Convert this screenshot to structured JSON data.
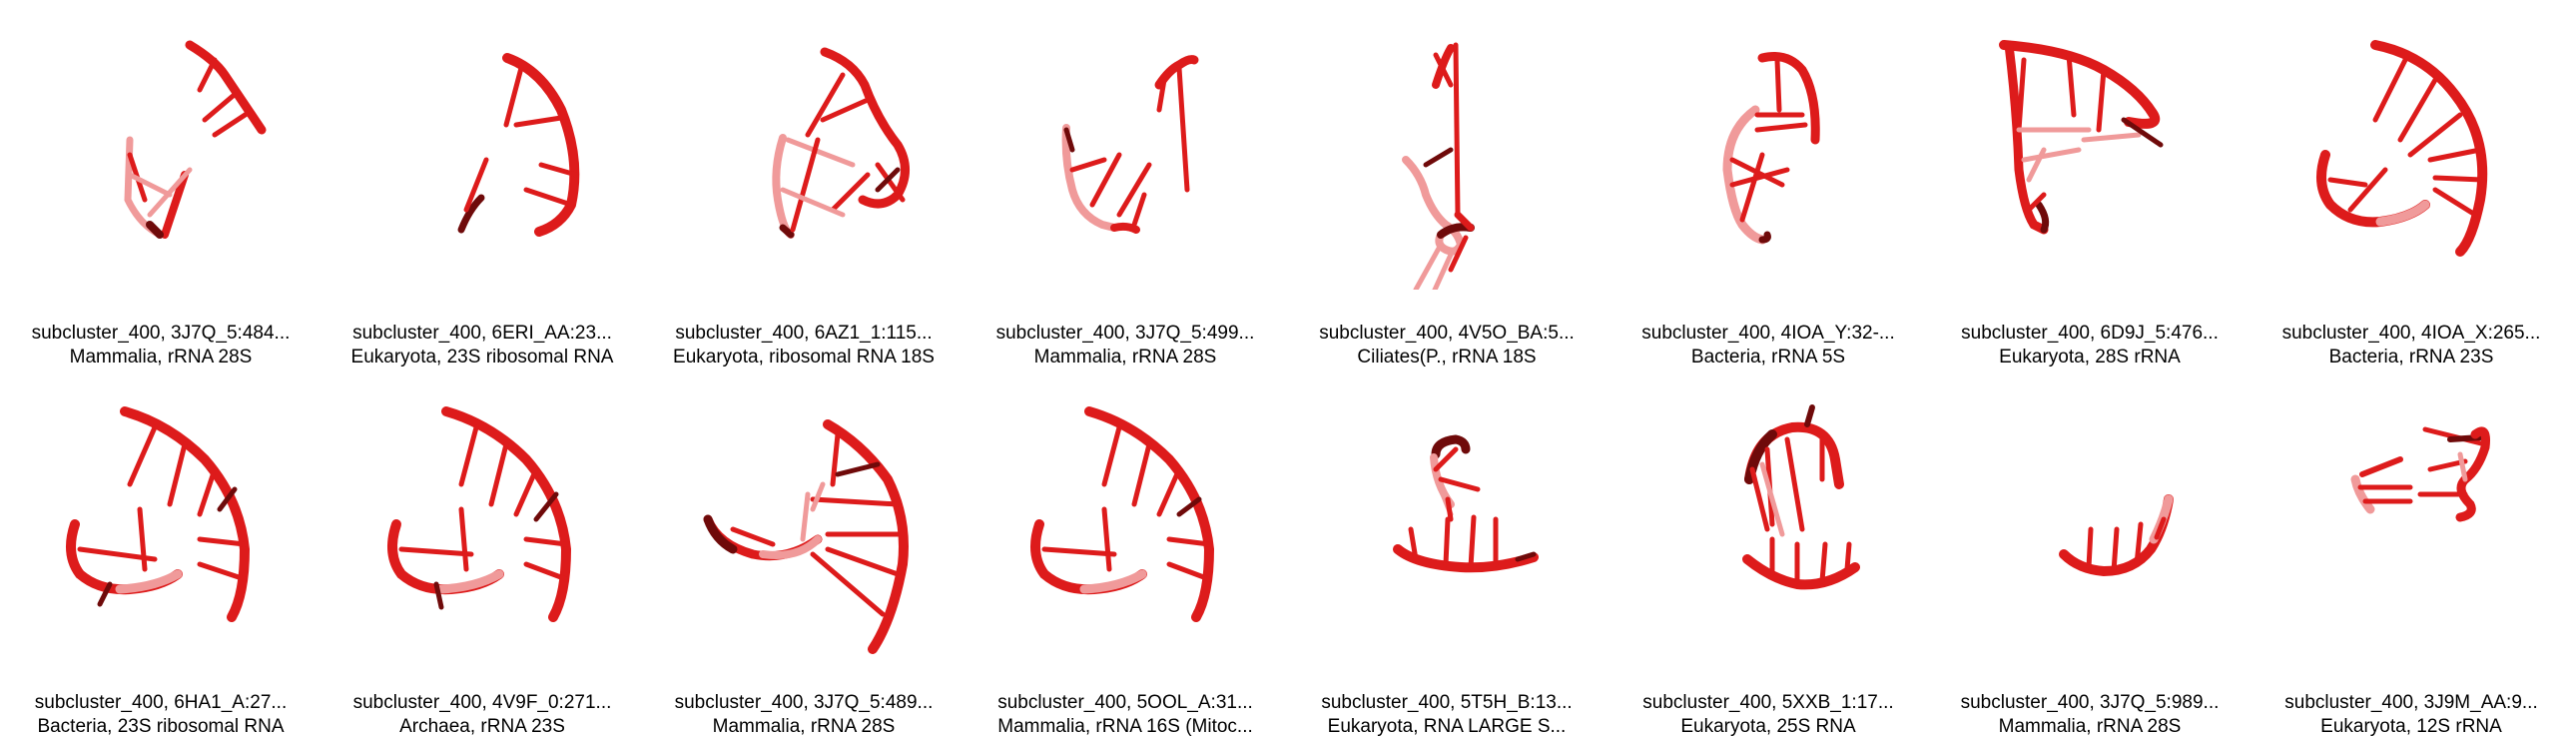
{
  "style": {
    "strand_color": "#dd1b1b",
    "strand_dark": "#6f0a0a",
    "strand_light": "#f09a9a",
    "background": "#ffffff"
  },
  "thumbnails": [
    {
      "title": "subcluster_400, 3J7Q_5:484...",
      "subtitle": "Mammalia, rRNA 28S"
    },
    {
      "title": "subcluster_400, 6ERI_AA:23...",
      "subtitle": "Eukaryota, 23S ribosomal RNA"
    },
    {
      "title": "subcluster_400, 6AZ1_1:115...",
      "subtitle": "Eukaryota, ribosomal RNA 18S"
    },
    {
      "title": "subcluster_400, 3J7Q_5:499...",
      "subtitle": "Mammalia, rRNA 28S"
    },
    {
      "title": "subcluster_400, 4V5O_BA:5...",
      "subtitle": "Ciliates(P., rRNA 18S"
    },
    {
      "title": "subcluster_400, 4IOA_Y:32-...",
      "subtitle": "Bacteria, rRNA 5S"
    },
    {
      "title": "subcluster_400, 6D9J_5:476...",
      "subtitle": "Eukaryota, 28S rRNA"
    },
    {
      "title": "subcluster_400, 4IOA_X:265...",
      "subtitle": "Bacteria, rRNA 23S"
    },
    {
      "title": "subcluster_400, 6HA1_A:27...",
      "subtitle": "Bacteria, 23S ribosomal RNA"
    },
    {
      "title": "subcluster_400, 4V9F_0:271...",
      "subtitle": "Archaea, rRNA 23S"
    },
    {
      "title": "subcluster_400, 3J7Q_5:489...",
      "subtitle": "Mammalia, rRNA 28S"
    },
    {
      "title": "subcluster_400, 5OOL_A:31...",
      "subtitle": "Mammalia, rRNA 16S (Mitoc..."
    },
    {
      "title": "subcluster_400, 5T5H_B:13...",
      "subtitle": "Eukaryota, RNA LARGE S..."
    },
    {
      "title": "subcluster_400, 5XXB_1:17...",
      "subtitle": "Eukaryota, 25S RNA"
    },
    {
      "title": "subcluster_400, 3J7Q_5:989...",
      "subtitle": "Mammalia, rRNA 28S"
    },
    {
      "title": "subcluster_400, 3J9M_AA:9...",
      "subtitle": "Eukaryota, 12S rRNA"
    }
  ]
}
